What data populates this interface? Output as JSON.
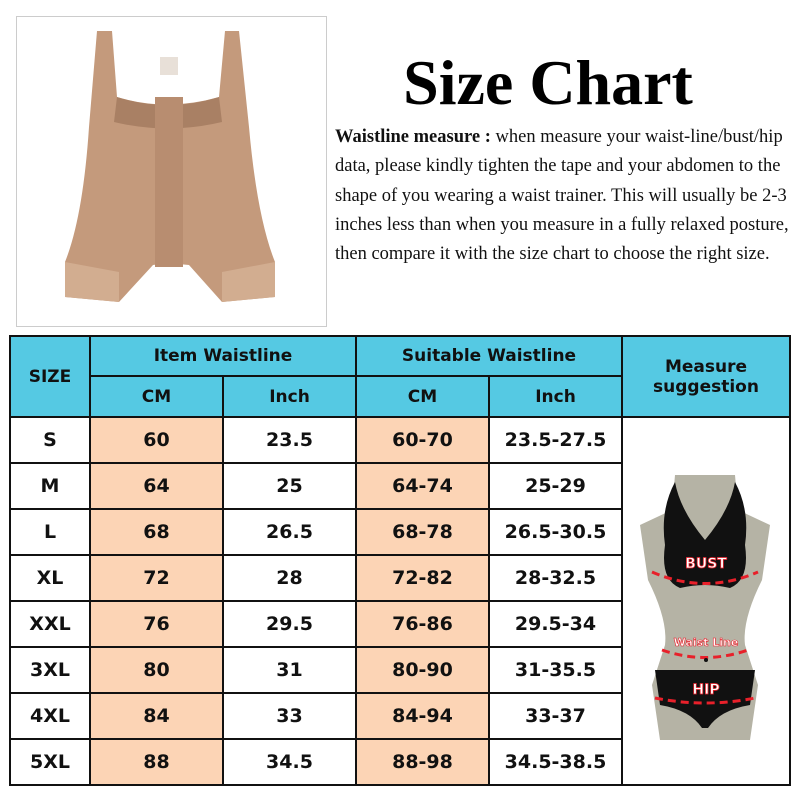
{
  "title": "Size Chart",
  "description": {
    "lead": "Waistline measure :",
    "text": " when measure your waist-line/bust/hip data, please kindly tighten the tape and your abdomen to the shape of you wearing a waist trainer. This will usually be 2-3 inches less than when you measure in a fully relaxed posture, then compare it with the size chart to choose the right size."
  },
  "table": {
    "headers": {
      "size": "SIZE",
      "item": "Item Waistline",
      "suitable": "Suitable Waistline",
      "measure": "Measure suggestion",
      "cm": "CM",
      "inch": "Inch"
    },
    "rows": [
      [
        "S",
        "60",
        "23.5",
        "60-70",
        "23.5-27.5"
      ],
      [
        "M",
        "64",
        "25",
        "64-74",
        "25-29"
      ],
      [
        "L",
        "68",
        "26.5",
        "68-78",
        "26.5-30.5"
      ],
      [
        "XL",
        "72",
        "28",
        "72-82",
        "28-32.5"
      ],
      [
        "XXL",
        "76",
        "29.5",
        "76-86",
        "29.5-34"
      ],
      [
        "3XL",
        "80",
        "31",
        "80-90",
        "31-35.5"
      ],
      [
        "4XL",
        "84",
        "33",
        "84-94",
        "33-37"
      ],
      [
        "5XL",
        "88",
        "34.5",
        "88-98",
        "34.5-38.5"
      ]
    ]
  },
  "mannequin": {
    "bust": "BUST",
    "waist": "Waist Line",
    "hip": "HIP"
  },
  "colors": {
    "header": "#55c9e3",
    "highlight": "#fcd4b5",
    "garment": "#c49a7c",
    "measure_line": "#e8202a"
  }
}
